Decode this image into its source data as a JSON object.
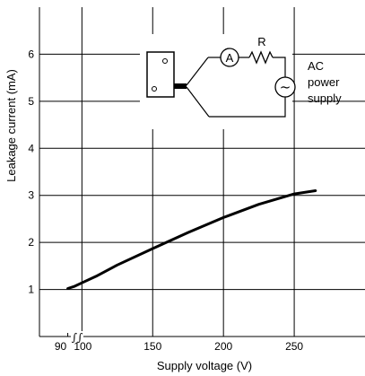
{
  "chart_data": {
    "type": "line",
    "xlabel": "Supply voltage (V)",
    "ylabel": "Leakage current (mA)",
    "xlim": [
      70,
      300
    ],
    "ylim": [
      0,
      7
    ],
    "x_ticks": [
      90,
      100,
      150,
      200,
      250
    ],
    "y_ticks": [
      1,
      2,
      3,
      4,
      5,
      6
    ],
    "axis_break_symbol": "∫∫",
    "grid": true,
    "series": [
      {
        "x": [
          90,
          95,
          100,
          110,
          125,
          150,
          175,
          200,
          225,
          250,
          265
        ],
        "y": [
          1.02,
          1.07,
          1.14,
          1.28,
          1.52,
          1.87,
          2.21,
          2.53,
          2.81,
          3.03,
          3.1
        ]
      }
    ],
    "inset": {
      "ammeter_symbol": "A",
      "resistor_label": "R",
      "ac_source_symbol": "~",
      "supply_label_lines": [
        "AC",
        "power",
        "supply"
      ]
    }
  }
}
